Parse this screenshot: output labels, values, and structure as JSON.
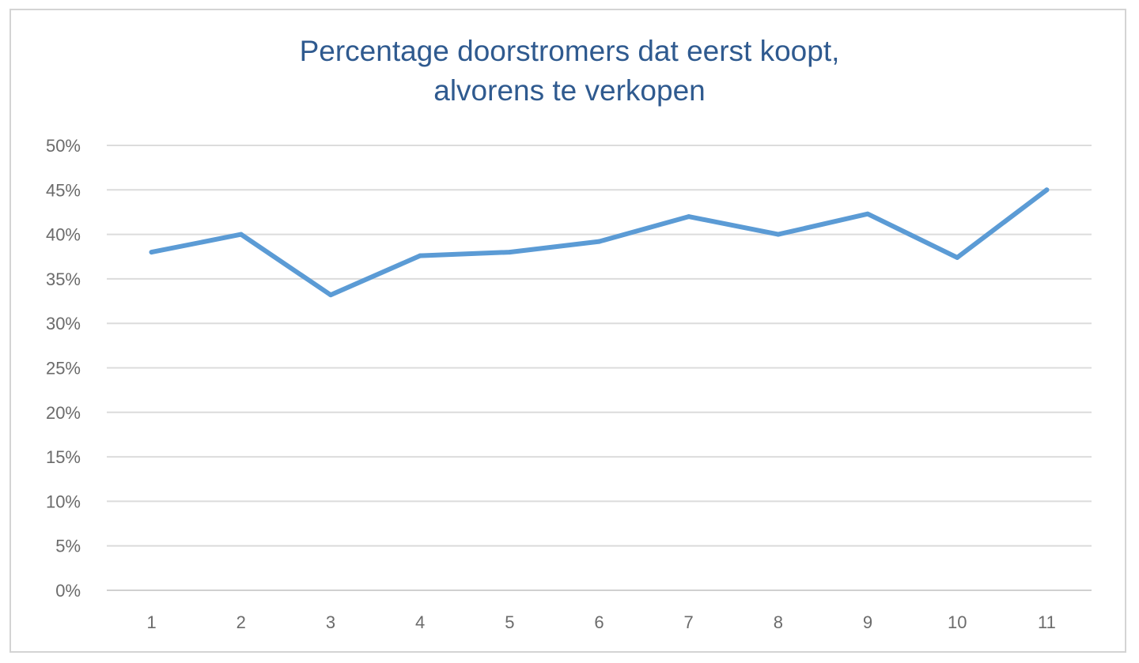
{
  "chart_data": {
    "type": "line",
    "title_lines": [
      "Percentage doorstromers dat eerst koopt,",
      "alvorens te verkopen"
    ],
    "categories": [
      "1",
      "2",
      "3",
      "4",
      "5",
      "6",
      "7",
      "8",
      "9",
      "10",
      "11"
    ],
    "series": [
      {
        "values": [
          38.0,
          40.0,
          33.2,
          37.6,
          38.0,
          39.2,
          42.0,
          40.0,
          42.3,
          37.4,
          45.0
        ],
        "color": "#5b9bd5"
      }
    ],
    "y_ticks": [
      "0%",
      "5%",
      "10%",
      "15%",
      "20%",
      "25%",
      "30%",
      "35%",
      "40%",
      "45%",
      "50%"
    ],
    "ylim": [
      0,
      50
    ],
    "grid": true,
    "legend": "none",
    "xlabel": "",
    "ylabel": ""
  }
}
